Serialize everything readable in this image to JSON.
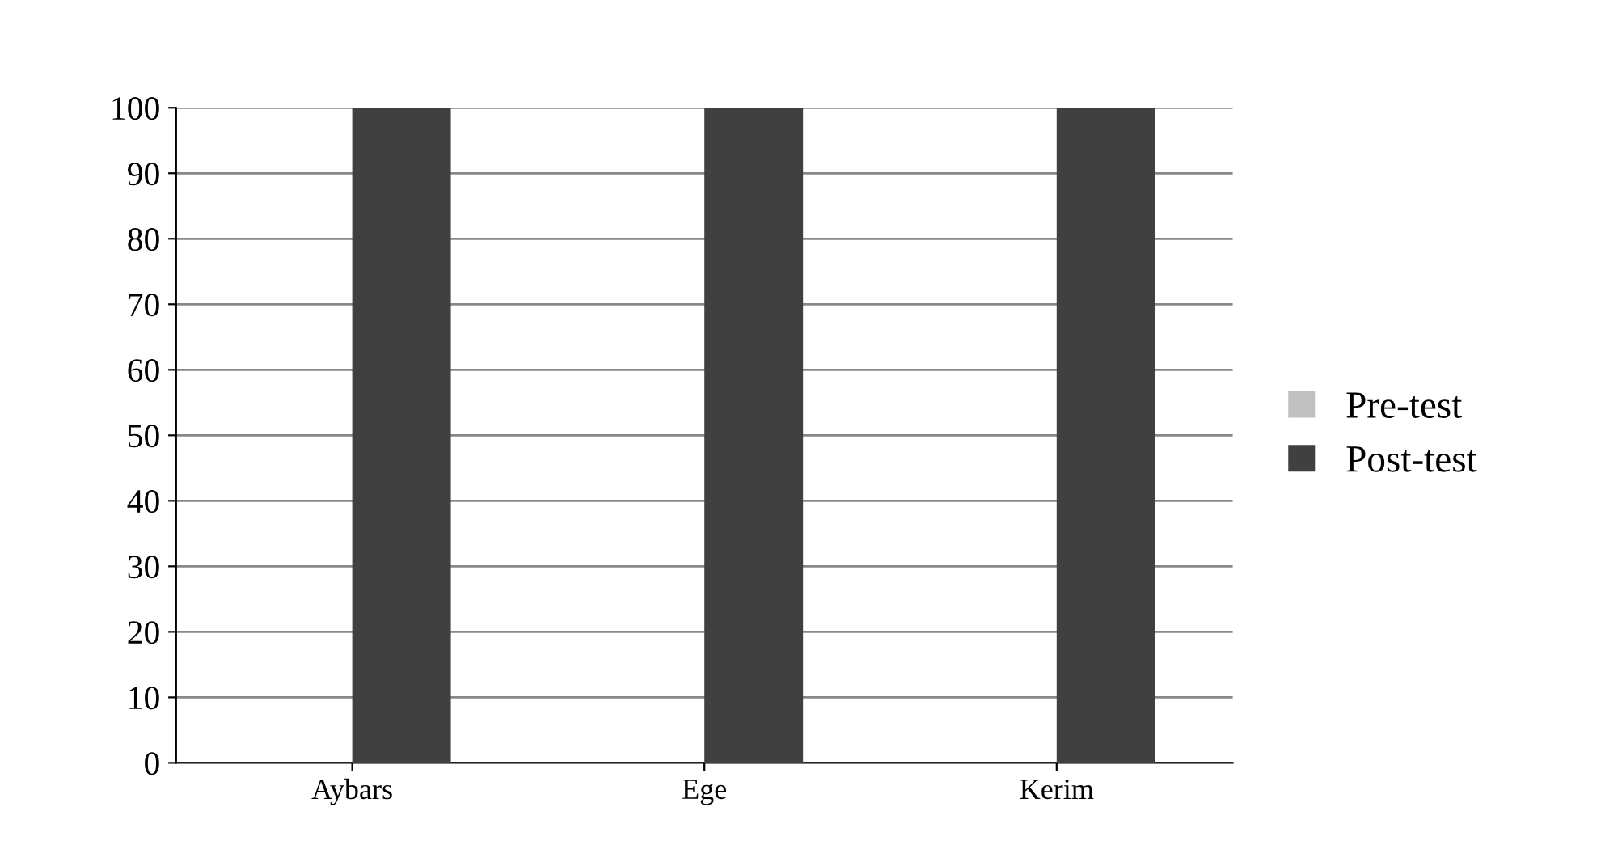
{
  "chart_data": {
    "type": "bar",
    "categories": [
      "Aybars",
      "Ege",
      "Kerim"
    ],
    "series": [
      {
        "name": "Pre-test",
        "color": "#c0c0c0",
        "values": [
          0,
          0,
          0
        ]
      },
      {
        "name": "Post-test",
        "color": "#404040",
        "values": [
          100,
          100,
          100
        ]
      }
    ],
    "ylim": [
      0,
      100
    ],
    "yticks": [
      0,
      10,
      20,
      30,
      40,
      50,
      60,
      70,
      80,
      90,
      100
    ],
    "grid": "y",
    "legend": "right"
  }
}
